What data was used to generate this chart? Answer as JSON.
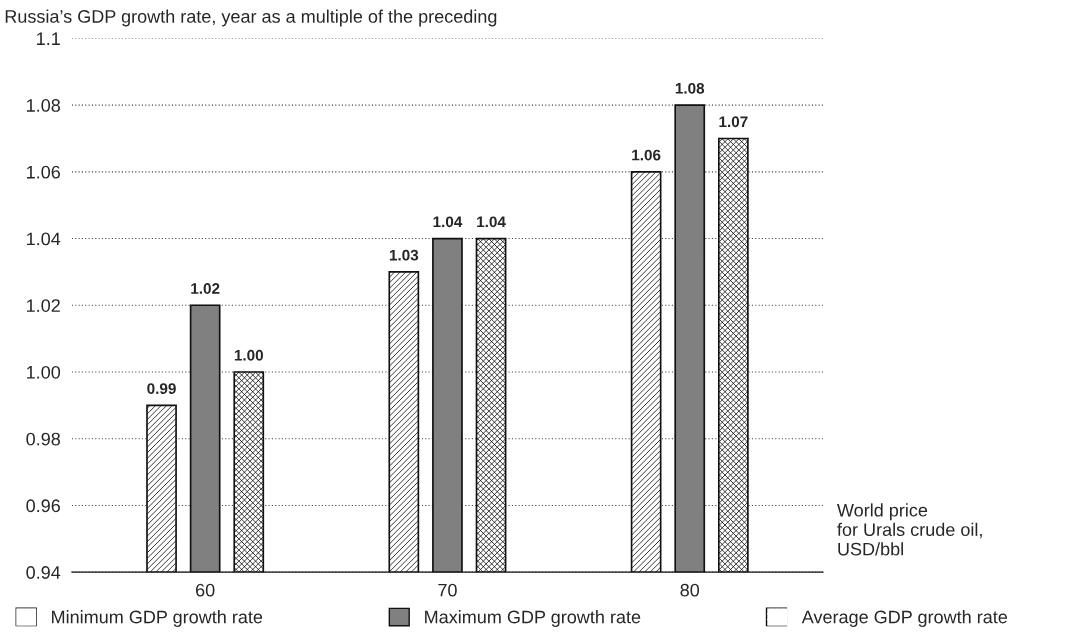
{
  "chart_data": {
    "type": "bar",
    "ylabel": "Russia’s GDP growth rate, year as a multiple of the preceding",
    "xlabel": "World price\nfor Urals crude oil,\nUSD/bbl",
    "categories": [
      "60",
      "70",
      "80"
    ],
    "series": [
      {
        "name": "Minimum GDP growth rate",
        "color": "#ffffff",
        "values": [
          0.99,
          1.03,
          1.06
        ],
        "value_labels": [
          "0.99",
          "1.03",
          "1.06"
        ]
      },
      {
        "name": "Maximum GDP growth rate",
        "color": "#808080",
        "values": [
          1.02,
          1.04,
          1.08
        ],
        "value_labels": [
          "1.02",
          "1.04",
          "1.08"
        ]
      },
      {
        "name": "Average GDP growth rate",
        "color": "#ffffff",
        "values": [
          1.0,
          1.04,
          1.07
        ],
        "value_labels": [
          "1.00",
          "1.04",
          "1.07"
        ]
      }
    ],
    "ylim": [
      0.94,
      1.1
    ],
    "yticks": [
      0.94,
      0.96,
      0.98,
      {
        "value": 1.0,
        "label": "1.00"
      },
      1.02,
      1.04,
      1.06,
      1.08,
      1.1
    ],
    "grid": "y",
    "legend": "bottom"
  }
}
